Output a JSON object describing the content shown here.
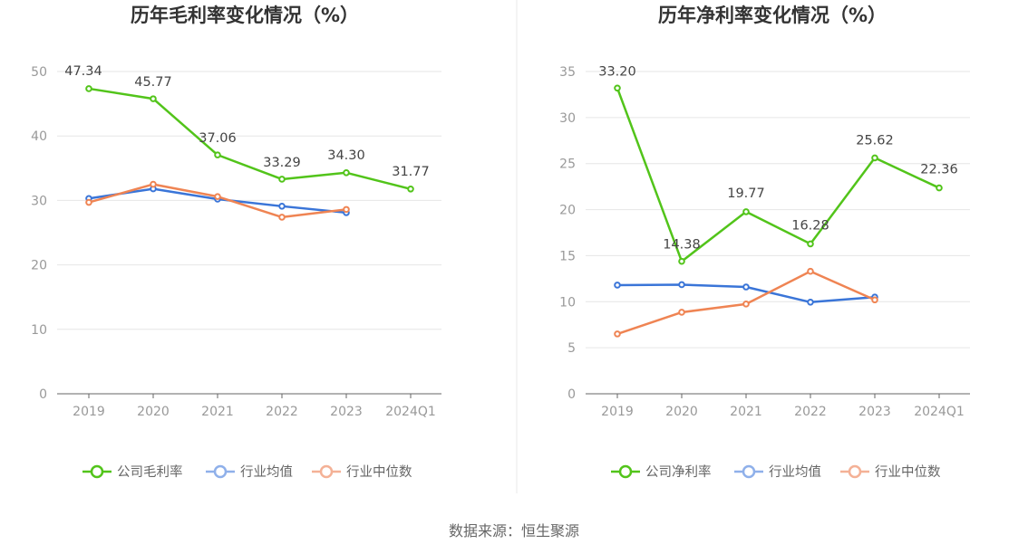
{
  "source_text": "数据来源：恒生聚源",
  "chart_data": [
    {
      "type": "line",
      "title": "历年毛利率变化情况（%）",
      "categories": [
        "2019",
        "2020",
        "2021",
        "2022",
        "2023",
        "2024Q1"
      ],
      "ylim": [
        0,
        50
      ],
      "yticks": [
        0,
        10,
        20,
        30,
        40,
        50
      ],
      "grid": true,
      "legend_position": "bottom",
      "series": [
        {
          "name": "公司毛利率",
          "color": "#52c41a",
          "values": [
            47.34,
            45.77,
            37.06,
            33.29,
            34.3,
            31.77
          ],
          "labels": [
            "47.34",
            "45.77",
            "37.06",
            "33.29",
            "34.30",
            "31.77"
          ]
        },
        {
          "name": "行业均值",
          "color": "#3a75d8",
          "values": [
            30.3,
            31.8,
            30.2,
            29.1,
            28.1,
            null
          ]
        },
        {
          "name": "行业中位数",
          "color": "#ef8453",
          "values": [
            29.7,
            32.5,
            30.6,
            27.4,
            28.6,
            null
          ]
        }
      ]
    },
    {
      "type": "line",
      "title": "历年净利率变化情况（%）",
      "categories": [
        "2019",
        "2020",
        "2021",
        "2022",
        "2023",
        "2024Q1"
      ],
      "ylim": [
        0,
        35
      ],
      "yticks": [
        0,
        5,
        10,
        15,
        20,
        25,
        30,
        35
      ],
      "grid": true,
      "legend_position": "bottom",
      "series": [
        {
          "name": "公司净利率",
          "color": "#52c41a",
          "values": [
            33.2,
            14.38,
            19.77,
            16.28,
            25.62,
            22.36
          ],
          "labels": [
            "33.20",
            "14.38",
            "19.77",
            "16.28",
            "25.62",
            "22.36"
          ]
        },
        {
          "name": "行业均值",
          "color": "#3a75d8",
          "values": [
            11.8,
            11.85,
            11.6,
            9.95,
            10.5,
            null
          ]
        },
        {
          "name": "行业中位数",
          "color": "#ef8453",
          "values": [
            6.5,
            8.85,
            9.75,
            13.3,
            10.2,
            null
          ]
        }
      ]
    }
  ]
}
